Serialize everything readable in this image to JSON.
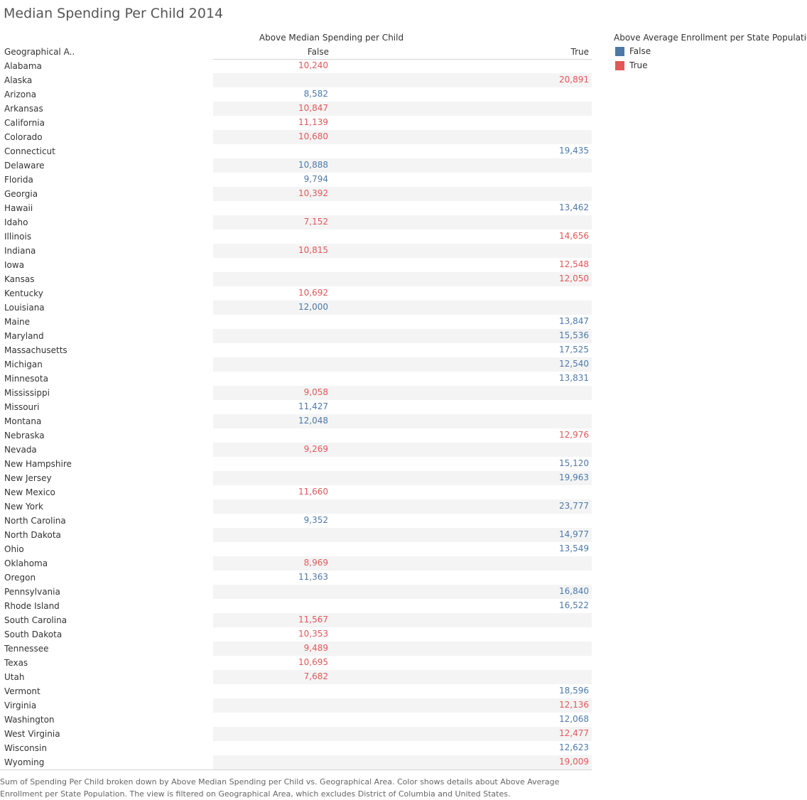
{
  "title": "Median Spending Per Child 2014",
  "colors": {
    "false": "#4e79a7",
    "true": "#e15759"
  },
  "chart_data": {
    "type": "table",
    "column_group_header": "Above Median Spending per Child",
    "row_header": "Geographical A..",
    "columns": [
      "False",
      "True"
    ],
    "legend": {
      "title": "Above Average Enrollment per State Population",
      "entries": [
        "False",
        "True"
      ],
      "placement": "right"
    },
    "rows": [
      {
        "state": "Alabama",
        "col": "False",
        "value": "10,240",
        "color": "True"
      },
      {
        "state": "Alaska",
        "col": "True",
        "value": "20,891",
        "color": "True"
      },
      {
        "state": "Arizona",
        "col": "False",
        "value": "8,582",
        "color": "False"
      },
      {
        "state": "Arkansas",
        "col": "False",
        "value": "10,847",
        "color": "True"
      },
      {
        "state": "California",
        "col": "False",
        "value": "11,139",
        "color": "True"
      },
      {
        "state": "Colorado",
        "col": "False",
        "value": "10,680",
        "color": "True"
      },
      {
        "state": "Connecticut",
        "col": "True",
        "value": "19,435",
        "color": "False"
      },
      {
        "state": "Delaware",
        "col": "False",
        "value": "10,888",
        "color": "False"
      },
      {
        "state": "Florida",
        "col": "False",
        "value": "9,794",
        "color": "False"
      },
      {
        "state": "Georgia",
        "col": "False",
        "value": "10,392",
        "color": "True"
      },
      {
        "state": "Hawaii",
        "col": "True",
        "value": "13,462",
        "color": "False"
      },
      {
        "state": "Idaho",
        "col": "False",
        "value": "7,152",
        "color": "True"
      },
      {
        "state": "Illinois",
        "col": "True",
        "value": "14,656",
        "color": "True"
      },
      {
        "state": "Indiana",
        "col": "False",
        "value": "10,815",
        "color": "True"
      },
      {
        "state": "Iowa",
        "col": "True",
        "value": "12,548",
        "color": "True"
      },
      {
        "state": "Kansas",
        "col": "True",
        "value": "12,050",
        "color": "True"
      },
      {
        "state": "Kentucky",
        "col": "False",
        "value": "10,692",
        "color": "True"
      },
      {
        "state": "Louisiana",
        "col": "False",
        "value": "12,000",
        "color": "False"
      },
      {
        "state": "Maine",
        "col": "True",
        "value": "13,847",
        "color": "False"
      },
      {
        "state": "Maryland",
        "col": "True",
        "value": "15,536",
        "color": "False"
      },
      {
        "state": "Massachusetts",
        "col": "True",
        "value": "17,525",
        "color": "False"
      },
      {
        "state": "Michigan",
        "col": "True",
        "value": "12,540",
        "color": "False"
      },
      {
        "state": "Minnesota",
        "col": "True",
        "value": "13,831",
        "color": "False"
      },
      {
        "state": "Mississippi",
        "col": "False",
        "value": "9,058",
        "color": "True"
      },
      {
        "state": "Missouri",
        "col": "False",
        "value": "11,427",
        "color": "False"
      },
      {
        "state": "Montana",
        "col": "False",
        "value": "12,048",
        "color": "False"
      },
      {
        "state": "Nebraska",
        "col": "True",
        "value": "12,976",
        "color": "True"
      },
      {
        "state": "Nevada",
        "col": "False",
        "value": "9,269",
        "color": "True"
      },
      {
        "state": "New Hampshire",
        "col": "True",
        "value": "15,120",
        "color": "False"
      },
      {
        "state": "New Jersey",
        "col": "True",
        "value": "19,963",
        "color": "False"
      },
      {
        "state": "New Mexico",
        "col": "False",
        "value": "11,660",
        "color": "True"
      },
      {
        "state": "New York",
        "col": "True",
        "value": "23,777",
        "color": "False"
      },
      {
        "state": "North Carolina",
        "col": "False",
        "value": "9,352",
        "color": "False"
      },
      {
        "state": "North Dakota",
        "col": "True",
        "value": "14,977",
        "color": "False"
      },
      {
        "state": "Ohio",
        "col": "True",
        "value": "13,549",
        "color": "False"
      },
      {
        "state": "Oklahoma",
        "col": "False",
        "value": "8,969",
        "color": "True"
      },
      {
        "state": "Oregon",
        "col": "False",
        "value": "11,363",
        "color": "False"
      },
      {
        "state": "Pennsylvania",
        "col": "True",
        "value": "16,840",
        "color": "False"
      },
      {
        "state": "Rhode Island",
        "col": "True",
        "value": "16,522",
        "color": "False"
      },
      {
        "state": "South Carolina",
        "col": "False",
        "value": "11,567",
        "color": "True"
      },
      {
        "state": "South Dakota",
        "col": "False",
        "value": "10,353",
        "color": "True"
      },
      {
        "state": "Tennessee",
        "col": "False",
        "value": "9,489",
        "color": "True"
      },
      {
        "state": "Texas",
        "col": "False",
        "value": "10,695",
        "color": "True"
      },
      {
        "state": "Utah",
        "col": "False",
        "value": "7,682",
        "color": "True"
      },
      {
        "state": "Vermont",
        "col": "True",
        "value": "18,596",
        "color": "False"
      },
      {
        "state": "Virginia",
        "col": "True",
        "value": "12,136",
        "color": "True"
      },
      {
        "state": "Washington",
        "col": "True",
        "value": "12,068",
        "color": "False"
      },
      {
        "state": "West Virginia",
        "col": "True",
        "value": "12,477",
        "color": "True"
      },
      {
        "state": "Wisconsin",
        "col": "True",
        "value": "12,623",
        "color": "False"
      },
      {
        "state": "Wyoming",
        "col": "True",
        "value": "19,009",
        "color": "True"
      }
    ]
  },
  "caption": "Sum of Spending Per Child broken down by Above Median Spending per Child vs. Geographical Area.  Color shows details about Above Average Enrollment per State Population. The view is filtered on Geographical Area, which excludes District of Columbia and United States."
}
